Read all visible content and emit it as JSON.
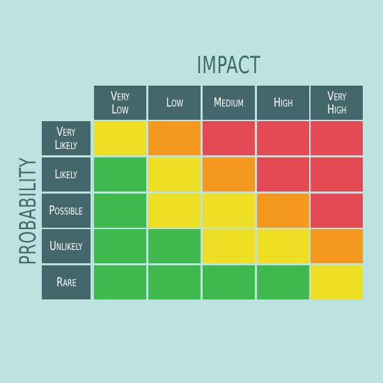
{
  "titles": {
    "impact": "IMPACT",
    "probability": "PROBABILITY"
  },
  "colors": {
    "background": "#bde3e0",
    "header": "#44676c",
    "green": "#3fb94e",
    "yellow": "#eedf24",
    "orange": "#f5991e",
    "red": "#e44a53"
  },
  "columns": [
    "Very\nLow",
    "Low",
    "Medium",
    "High",
    "Very\nHigh"
  ],
  "rows": [
    "Very\nLikely",
    "Likely",
    "Possible",
    "Unlikely",
    "Rare"
  ],
  "matrix": [
    [
      "yellow",
      "orange",
      "red",
      "red",
      "red"
    ],
    [
      "green",
      "yellow",
      "orange",
      "red",
      "red"
    ],
    [
      "green",
      "yellow",
      "yellow",
      "orange",
      "red"
    ],
    [
      "green",
      "green",
      "yellow",
      "yellow",
      "orange"
    ],
    [
      "green",
      "green",
      "green",
      "green",
      "yellow"
    ]
  ]
}
